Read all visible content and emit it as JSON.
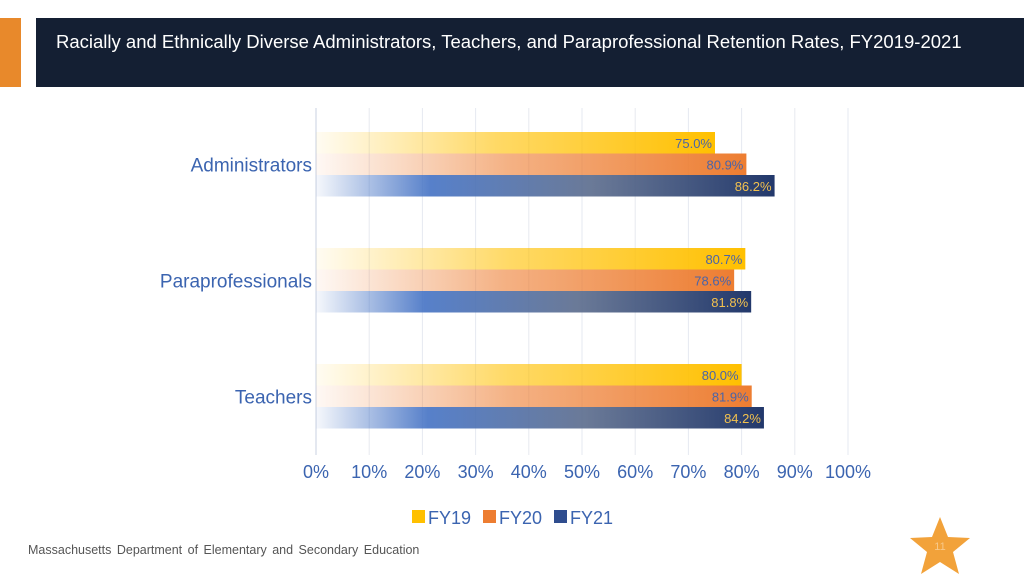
{
  "slide": {
    "title": "Racially and Ethnically Diverse Administrators, Teachers, and Paraprofessional Retention Rates, FY2019-2021",
    "footer": "Massachusetts Department of Elementary and Secondary Education",
    "page_number": "11"
  },
  "colors": {
    "title_band": "#141f33",
    "accent": "#e8892b",
    "fy19": "#ffc000",
    "fy20": "#ed7d31",
    "fy21": "#2f4d8e",
    "text": "#3b64b0"
  },
  "chart_data": {
    "type": "bar",
    "orientation": "horizontal",
    "categories": [
      "Administrators",
      "Paraprofessionals",
      "Teachers"
    ],
    "series": [
      {
        "name": "FY19",
        "values": [
          75.0,
          80.7,
          80.0
        ],
        "labels": [
          "75.0%",
          "80.7%",
          "80.0%"
        ]
      },
      {
        "name": "FY20",
        "values": [
          80.9,
          78.6,
          81.9
        ],
        "labels": [
          "80.9%",
          "78.6%",
          "81.9%"
        ]
      },
      {
        "name": "FY21",
        "values": [
          86.2,
          81.8,
          84.2
        ],
        "labels": [
          "86.2%",
          "81.8%",
          "84.2%"
        ]
      }
    ],
    "xlim": [
      0,
      100
    ],
    "x_ticks": [
      "0%",
      "10%",
      "20%",
      "30%",
      "40%",
      "50%",
      "60%",
      "70%",
      "80%",
      "90%",
      "100%"
    ],
    "grid": true,
    "legend_position": "bottom"
  }
}
